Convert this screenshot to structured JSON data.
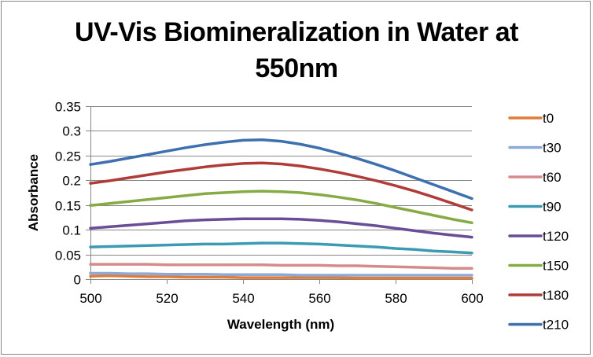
{
  "chart_data": {
    "type": "line",
    "title": "UV-Vis Biomineralization in Water at 550nm",
    "title_lines": [
      "UV-Vis Biomineralization in Water at",
      "550nm"
    ],
    "xlabel": "Wavelength (nm)",
    "ylabel": "Absorbance",
    "xlim": [
      500,
      600
    ],
    "ylim": [
      0,
      0.35
    ],
    "xticks": [
      500,
      520,
      540,
      560,
      580,
      600
    ],
    "xtick_labels": [
      "500",
      "520",
      "540",
      "560",
      "580",
      "600"
    ],
    "yticks": [
      0,
      0.05,
      0.1,
      0.15,
      0.2,
      0.25,
      0.3,
      0.35
    ],
    "ytick_labels": [
      "0",
      "0.05",
      "0.1",
      "0.15",
      "0.2",
      "0.25",
      "0.3",
      "0.35"
    ],
    "grid": "horizontal",
    "legend_position": "right",
    "x": [
      500,
      505,
      510,
      515,
      520,
      525,
      530,
      535,
      540,
      545,
      550,
      555,
      560,
      565,
      570,
      575,
      580,
      585,
      590,
      595,
      600
    ],
    "series": [
      {
        "name": "t0",
        "color": "#E07B39",
        "values": [
          0.006,
          0.007,
          0.006,
          0.005,
          0.005,
          0.004,
          0.004,
          0.004,
          0.003,
          0.003,
          0.003,
          0.003,
          0.003,
          0.003,
          0.002,
          0.002,
          0.002,
          0.002,
          0.002,
          0.002,
          0.002
        ]
      },
      {
        "name": "t30",
        "color": "#8EA9D6",
        "values": [
          0.012,
          0.012,
          0.011,
          0.011,
          0.01,
          0.01,
          0.01,
          0.009,
          0.009,
          0.009,
          0.009,
          0.008,
          0.008,
          0.008,
          0.008,
          0.008,
          0.008,
          0.008,
          0.008,
          0.008,
          0.008
        ]
      },
      {
        "name": "t60",
        "color": "#D68B8B",
        "values": [
          0.03,
          0.03,
          0.03,
          0.03,
          0.029,
          0.029,
          0.029,
          0.029,
          0.029,
          0.029,
          0.028,
          0.028,
          0.028,
          0.027,
          0.027,
          0.026,
          0.025,
          0.024,
          0.023,
          0.022,
          0.022
        ]
      },
      {
        "name": "t90",
        "color": "#3C9AB2",
        "values": [
          0.065,
          0.066,
          0.067,
          0.068,
          0.069,
          0.07,
          0.071,
          0.071,
          0.072,
          0.073,
          0.073,
          0.072,
          0.071,
          0.069,
          0.067,
          0.065,
          0.062,
          0.06,
          0.057,
          0.055,
          0.053
        ]
      },
      {
        "name": "t120",
        "color": "#6B4C96",
        "values": [
          0.103,
          0.106,
          0.109,
          0.112,
          0.115,
          0.118,
          0.12,
          0.121,
          0.122,
          0.122,
          0.122,
          0.121,
          0.119,
          0.116,
          0.112,
          0.108,
          0.103,
          0.098,
          0.093,
          0.089,
          0.085
        ]
      },
      {
        "name": "t150",
        "color": "#86AB45",
        "values": [
          0.149,
          0.153,
          0.157,
          0.161,
          0.165,
          0.169,
          0.173,
          0.175,
          0.177,
          0.178,
          0.177,
          0.175,
          0.171,
          0.166,
          0.16,
          0.153,
          0.145,
          0.137,
          0.129,
          0.121,
          0.114
        ]
      },
      {
        "name": "t180",
        "color": "#B03C3A",
        "values": [
          0.194,
          0.199,
          0.205,
          0.211,
          0.217,
          0.222,
          0.227,
          0.231,
          0.234,
          0.235,
          0.233,
          0.229,
          0.223,
          0.216,
          0.208,
          0.199,
          0.189,
          0.178,
          0.166,
          0.153,
          0.14
        ]
      },
      {
        "name": "t210",
        "color": "#3E70B0",
        "values": [
          0.232,
          0.238,
          0.245,
          0.252,
          0.259,
          0.266,
          0.272,
          0.277,
          0.281,
          0.282,
          0.279,
          0.273,
          0.265,
          0.255,
          0.244,
          0.232,
          0.219,
          0.205,
          0.191,
          0.177,
          0.163
        ]
      }
    ]
  }
}
